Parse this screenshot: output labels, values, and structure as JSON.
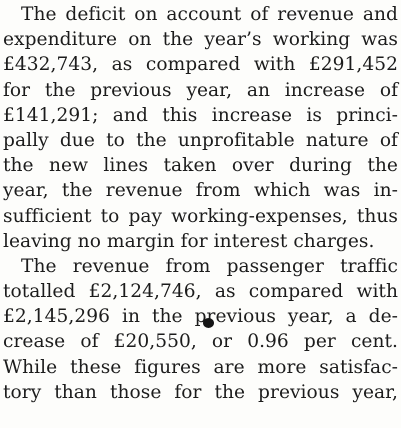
{
  "document": {
    "paragraphs": [
      {
        "lines": [
          "The deficit on account of revenue and",
          "expenditure on the year’s working was",
          "£432,743, as compared with £291,452",
          "for the previous year, an increase of",
          "£141,291; and this increase is princi-",
          "pally due to the unprofitable nature of",
          "the new lines taken over during the",
          "year, the revenue from which was in-",
          "sufficient to pay working-expenses, thus",
          "leaving no margin for interest charges."
        ]
      },
      {
        "lines": [
          "The revenue from passenger traffic",
          "totalled £2,124,746, as compared with",
          "£2,145,296 in the previous year, a de-",
          "crease of £20,550, or 0.96 per cent.",
          "While these figures are more satisfac-",
          "tory than those for the previous year,"
        ]
      }
    ]
  }
}
